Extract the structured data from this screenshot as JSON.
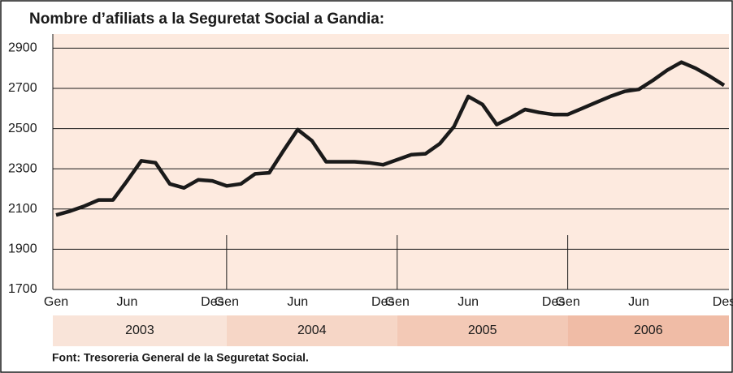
{
  "chart_data": {
    "type": "line",
    "title": "Nombre d’afiliats a la Seguretat Social a Gandia:",
    "source": "Font: Tresoreria General de la Seguretat Social.",
    "categories": [
      "Gen",
      null,
      null,
      null,
      null,
      "Jun",
      null,
      null,
      null,
      null,
      null,
      "Des",
      "Gen",
      null,
      null,
      null,
      null,
      "Jun",
      null,
      null,
      null,
      null,
      null,
      "Des",
      "Gen",
      null,
      null,
      null,
      null,
      "Jun",
      null,
      null,
      null,
      null,
      null,
      "Des",
      "Gen",
      null,
      null,
      null,
      null,
      "Jun",
      null,
      null,
      null,
      null,
      null,
      "Des"
    ],
    "series": [
      {
        "name": "Afiliats",
        "color": "#1a1a1a",
        "values": [
          2070,
          2090,
          2115,
          2145,
          2145,
          2240,
          2340,
          2330,
          2225,
          2205,
          2245,
          2240,
          2215,
          2225,
          2275,
          2280,
          2390,
          2495,
          2440,
          2335,
          2335,
          2335,
          2330,
          2320,
          2345,
          2370,
          2375,
          2425,
          2510,
          2660,
          2620,
          2520,
          2555,
          2595,
          2580,
          2570,
          2570,
          2600,
          2630,
          2660,
          2685,
          2695,
          2740,
          2790,
          2830,
          2800,
          2760,
          2715
        ]
      }
    ],
    "year_bands": [
      {
        "label": "2003",
        "color": "#f9e4d9"
      },
      {
        "label": "2004",
        "color": "#f6d6c6"
      },
      {
        "label": "2005",
        "color": "#f3c9b6"
      },
      {
        "label": "2006",
        "color": "#f0bca6"
      }
    ],
    "ylim": [
      1700,
      2970
    ],
    "yticks": [
      1700,
      1900,
      2100,
      2300,
      2500,
      2700,
      2900
    ],
    "grid": true,
    "background": "#fdeadf"
  }
}
